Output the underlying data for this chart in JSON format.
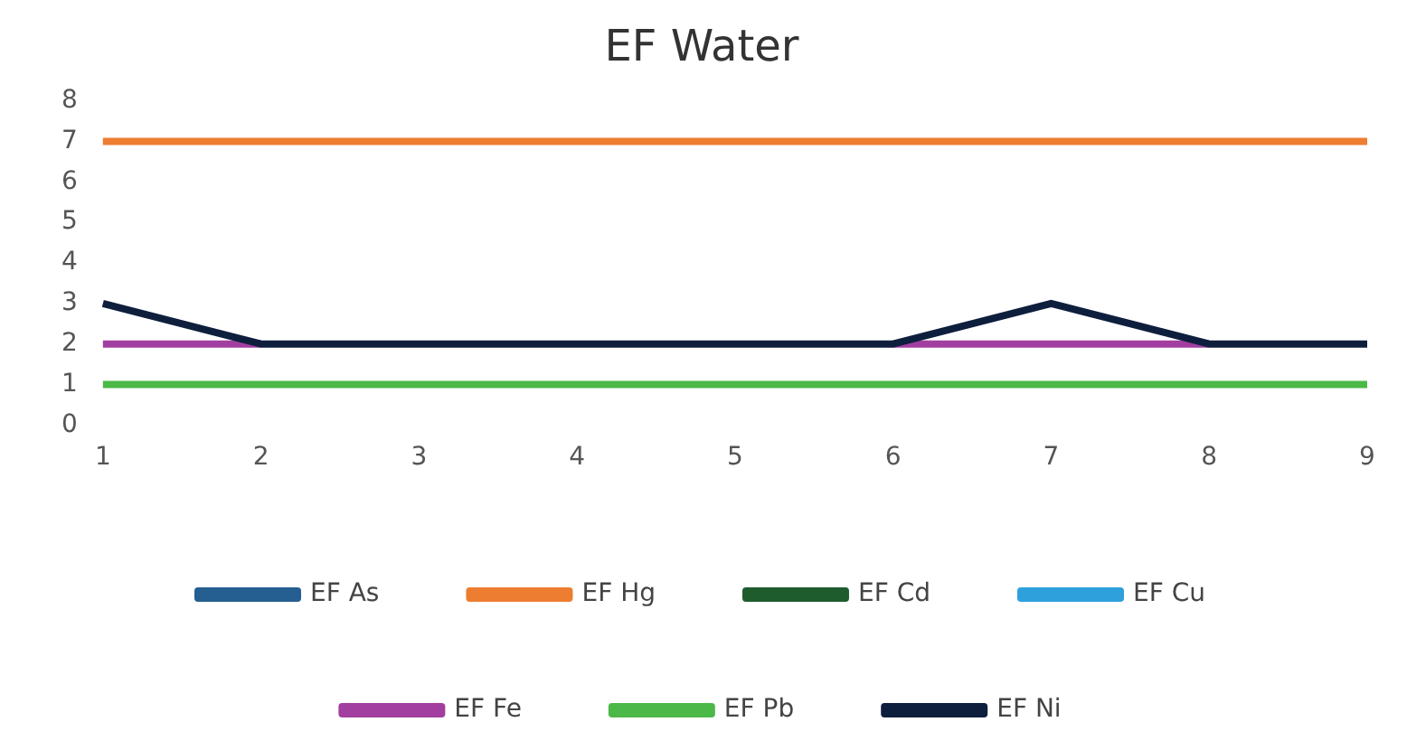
{
  "chart_data": {
    "type": "line",
    "title": "EF Water",
    "categories": [
      "1",
      "2",
      "3",
      "4",
      "5",
      "6",
      "7",
      "8",
      "9"
    ],
    "series": [
      {
        "name": "EF As",
        "color": "#255e91",
        "values": [
          null,
          null,
          null,
          null,
          null,
          null,
          null,
          null,
          null
        ]
      },
      {
        "name": "EF Hg",
        "color": "#ed7d31",
        "values": [
          7,
          7,
          7,
          7,
          7,
          7,
          7,
          7,
          7
        ]
      },
      {
        "name": "EF Cd",
        "color": "#1e5c2e",
        "values": [
          null,
          null,
          null,
          null,
          null,
          null,
          null,
          null,
          null
        ]
      },
      {
        "name": "EF Cu",
        "color": "#2ea0dc",
        "values": [
          null,
          null,
          null,
          null,
          null,
          null,
          null,
          null,
          null
        ]
      },
      {
        "name": "EF Fe",
        "color": "#a33ea1",
        "values": [
          2,
          2,
          null,
          null,
          null,
          2,
          2,
          2,
          null
        ]
      },
      {
        "name": "EF Pb",
        "color": "#4cb848",
        "values": [
          1,
          1,
          1,
          1,
          1,
          1,
          1,
          1,
          1
        ]
      },
      {
        "name": "EF Ni",
        "color": "#0e1f3e",
        "values": [
          3,
          2,
          2,
          2,
          2,
          2,
          3,
          2,
          2
        ]
      }
    ],
    "ylim": [
      0,
      8
    ],
    "yticks": [
      0,
      1,
      2,
      3,
      4,
      5,
      6,
      7,
      8
    ],
    "grid": false,
    "legend": "bottom",
    "marker": "none",
    "line_style": "solid"
  }
}
